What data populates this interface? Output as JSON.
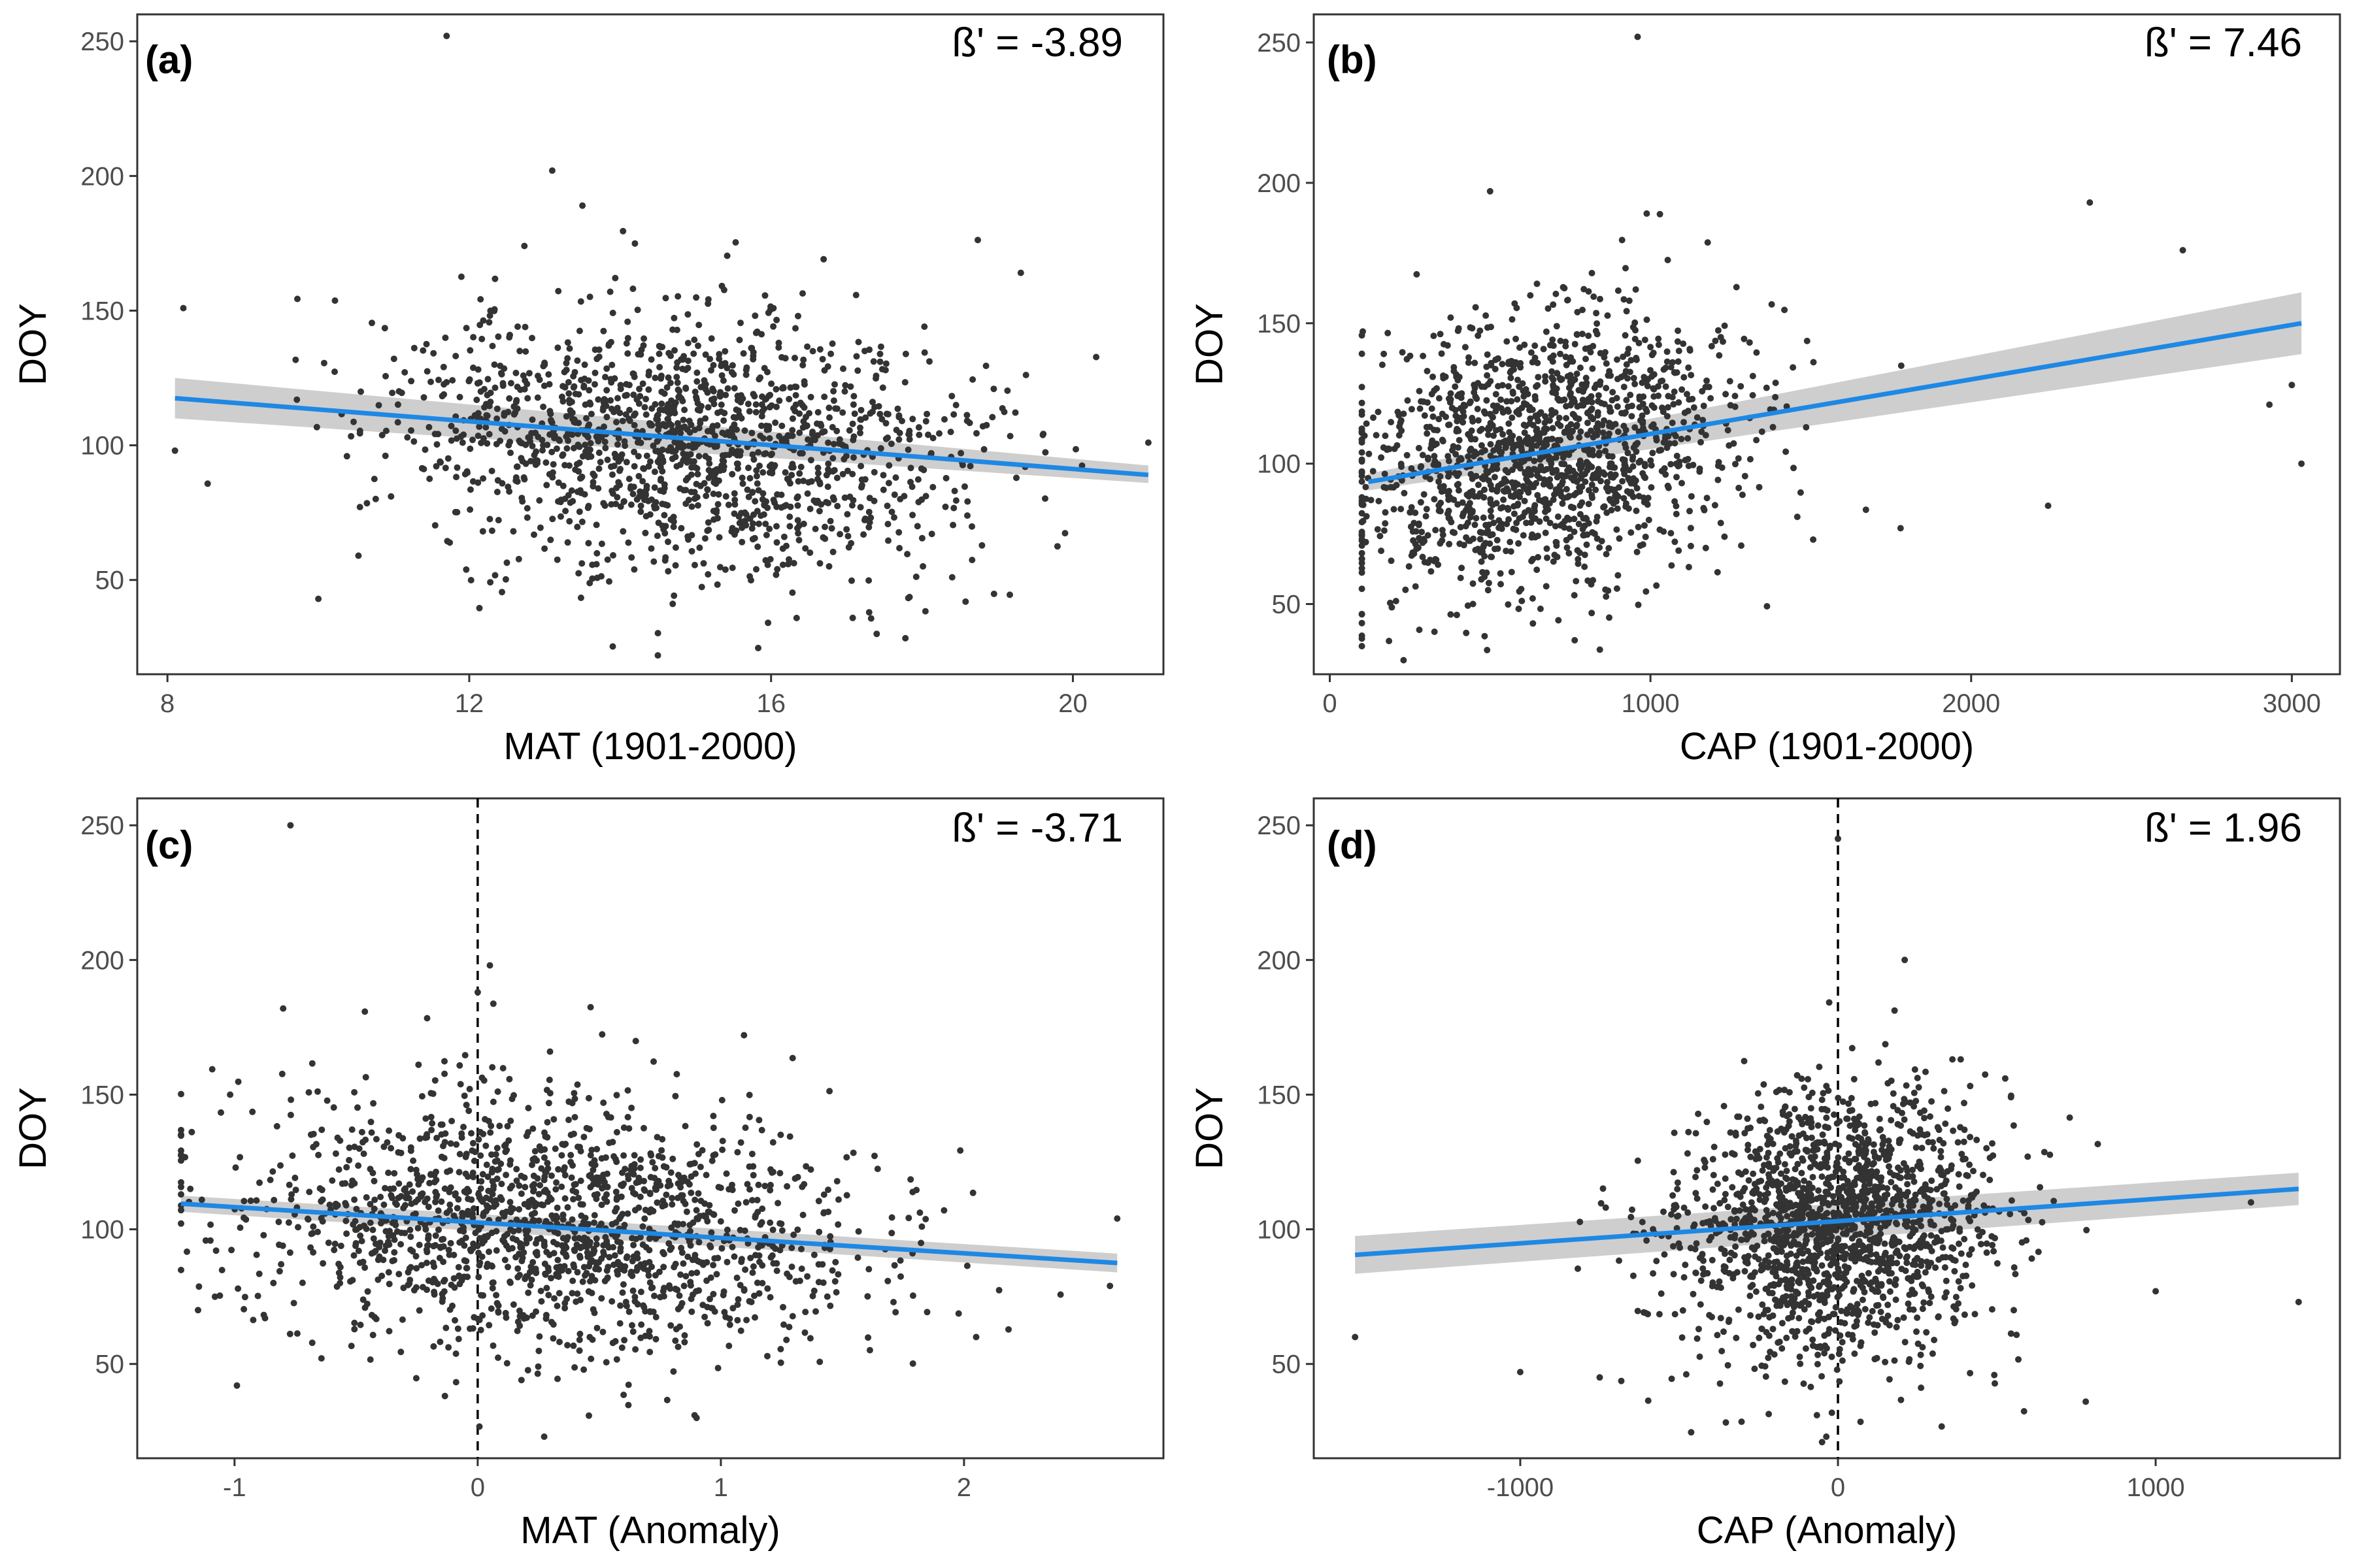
{
  "colors": {
    "points": "#333333",
    "fit_line": "#1e88e5",
    "ci_band": "#bdbdbd",
    "axis": "#333333"
  },
  "chart_data": [
    {
      "type": "scatter",
      "tag": "(a)",
      "annotation": "ß' = -3.89",
      "xlabel": "MAT (1901-2000)",
      "ylabel": "DOY",
      "xlim": [
        7.6,
        21.2
      ],
      "ylim": [
        15,
        260
      ],
      "xticks": [
        8,
        12,
        16,
        20
      ],
      "xtick_labels": [
        "8",
        "12",
        "16",
        "20"
      ],
      "yticks": [
        50,
        100,
        150,
        200,
        250
      ],
      "ytick_labels": [
        "50",
        "100",
        "150",
        "200",
        "250"
      ],
      "grid": false,
      "vline": null,
      "fit": {
        "x": [
          8.1,
          21
        ],
        "y": [
          117.5,
          89
        ],
        "ci_lo": [
          110,
          86
        ],
        "ci_hi": [
          125,
          92.5
        ]
      },
      "cloud": {
        "x_mean": 14.8,
        "x_sd": 1.9,
        "x_min": 8.1,
        "x_max": 21,
        "y_mean": 102,
        "y_sd": 24,
        "slope": -2.2,
        "n": 1500,
        "seed": 11
      },
      "points": [
        [
          8.1,
          98
        ],
        [
          11.7,
          252
        ],
        [
          13.1,
          202
        ],
        [
          13.5,
          189
        ],
        [
          14.5,
          22
        ],
        [
          17.3,
          38
        ],
        [
          17.4,
          30
        ],
        [
          18.4,
          51
        ],
        [
          21,
          101
        ],
        [
          10,
          43
        ]
      ]
    },
    {
      "type": "scatter",
      "tag": "(b)",
      "annotation": "ß' = 7.46",
      "xlabel": "CAP (1901-2000)",
      "ylabel": "DOY",
      "xlim": [
        -50,
        3150
      ],
      "ylim": [
        25,
        260
      ],
      "xticks": [
        0,
        1000,
        2000,
        3000
      ],
      "xtick_labels": [
        "0",
        "1000",
        "2000",
        "3000"
      ],
      "yticks": [
        50,
        100,
        150,
        200,
        250
      ],
      "ytick_labels": [
        "50",
        "100",
        "150",
        "200",
        "250"
      ],
      "grid": false,
      "vline": null,
      "fit": {
        "x": [
          120,
          3030
        ],
        "y": [
          93.5,
          150
        ],
        "ci_lo": [
          90.5,
          139
        ],
        "ci_hi": [
          96.5,
          161
        ]
      },
      "cloud": {
        "x_mean": 650,
        "x_sd": 300,
        "x_min": 100,
        "x_max": 3050,
        "y_mean": 103,
        "y_sd": 24,
        "slope": 0.019,
        "n": 1500,
        "seed": 23
      },
      "points": [
        [
          960,
          252
        ],
        [
          500,
          197
        ],
        [
          2370,
          193
        ],
        [
          2660,
          176
        ],
        [
          3000,
          128
        ],
        [
          3030,
          100
        ],
        [
          2930,
          121
        ],
        [
          2240,
          85
        ],
        [
          1780,
          77
        ],
        [
          230,
          30
        ]
      ]
    },
    {
      "type": "scatter",
      "tag": "(c)",
      "annotation": "ß' = -3.71",
      "xlabel": "MAT (Anomaly)",
      "ylabel": "DOY",
      "xlim": [
        -1.4,
        2.82
      ],
      "ylim": [
        15,
        260
      ],
      "xticks": [
        -1,
        0,
        1,
        2
      ],
      "xtick_labels": [
        "-1",
        "0",
        "1",
        "2"
      ],
      "yticks": [
        50,
        100,
        150,
        200,
        250
      ],
      "ytick_labels": [
        "50",
        "100",
        "150",
        "200",
        "250"
      ],
      "grid": false,
      "vline": 0,
      "fit": {
        "x": [
          -1.22,
          2.63
        ],
        "y": [
          109.5,
          87.5
        ],
        "ci_lo": [
          106.5,
          84
        ],
        "ci_hi": [
          112.5,
          91
        ]
      },
      "cloud": {
        "x_mean": 0.3,
        "x_sd": 0.65,
        "x_min": -1.22,
        "x_max": 2.63,
        "y_mean": 102,
        "y_sd": 24,
        "slope": -5.7,
        "n": 1600,
        "seed": 37
      },
      "points": [
        [
          -0.77,
          250
        ],
        [
          0.05,
          198
        ],
        [
          0.0,
          188
        ],
        [
          -0.8,
          182
        ],
        [
          0.9,
          30
        ],
        [
          2.6,
          79
        ],
        [
          2.63,
          104
        ],
        [
          2.05,
          60
        ],
        [
          -0.99,
          42
        ],
        [
          -1.15,
          70
        ]
      ]
    },
    {
      "type": "scatter",
      "tag": "(d)",
      "annotation": "ß' = 1.96",
      "xlabel": "CAP (Anomaly)",
      "ylabel": "DOY",
      "xlim": [
        -1650,
        1580
      ],
      "ylim": [
        15,
        260
      ],
      "xticks": [
        -1000,
        0,
        1000
      ],
      "xtick_labels": [
        "-1000",
        "0",
        "1000"
      ],
      "yticks": [
        50,
        100,
        150,
        200,
        250
      ],
      "ytick_labels": [
        "50",
        "100",
        "150",
        "200",
        "250"
      ],
      "grid": false,
      "vline": 0,
      "fit": {
        "x": [
          -1520,
          1450
        ],
        "y": [
          90.5,
          115
        ],
        "ci_lo": [
          83.5,
          109
        ],
        "ci_hi": [
          97.5,
          121
        ]
      },
      "cloud": {
        "x_mean": 0,
        "x_sd": 240,
        "x_min": -1520,
        "x_max": 1450,
        "y_mean": 102,
        "y_sd": 24,
        "slope": 0.008,
        "n": 1700,
        "seed": 53
      },
      "points": [
        [
          0,
          245
        ],
        [
          -1520,
          60
        ],
        [
          1450,
          73
        ],
        [
          210,
          200
        ],
        [
          -50,
          21
        ],
        [
          1000,
          77
        ],
        [
          780,
          36
        ],
        [
          -750,
          45
        ],
        [
          -1000,
          47
        ],
        [
          1300,
          110
        ]
      ]
    }
  ]
}
